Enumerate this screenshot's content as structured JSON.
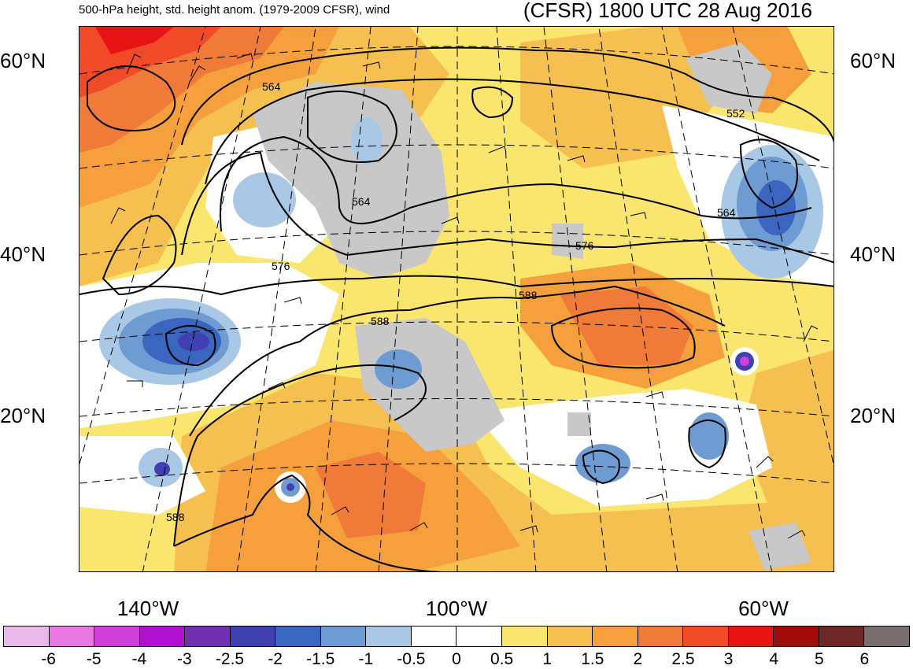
{
  "titles": {
    "left": "500-hPa height, std. height anom. (1979-2009 CFSR), wind",
    "right": "(CFSR) 1800 UTC 28 Aug 2016"
  },
  "latitude_labels": [
    "60°N",
    "40°N",
    "20°N"
  ],
  "longitude_labels": [
    "140°W",
    "100°W",
    "60°W"
  ],
  "contour_labels": [
    "564",
    "564",
    "564",
    "552",
    "576",
    "576",
    "588",
    "588",
    "588"
  ],
  "colors": {
    "gray_land": "#c8c8c8",
    "contour": "#000000"
  },
  "colorbar": {
    "colors": [
      "#e8b8e8",
      "#e878e0",
      "#d040d8",
      "#b010d0",
      "#7030b0",
      "#4040b0",
      "#3a66c0",
      "#6e9cd2",
      "#a8c8e6",
      "#ffffff",
      "#ffffff",
      "#fae66e",
      "#f5c050",
      "#f5a03c",
      "#f07a38",
      "#f04a28",
      "#e61414",
      "#a00a0a",
      "#6e2828",
      "#786e6e"
    ],
    "ticks": [
      "-6",
      "-5",
      "-4",
      "-3",
      "-2.5",
      "-2",
      "-1.5",
      "-1",
      "-0.5",
      "0",
      "0.5",
      "1",
      "1.5",
      "2",
      "2.5",
      "3",
      "4",
      "5",
      "6"
    ]
  }
}
